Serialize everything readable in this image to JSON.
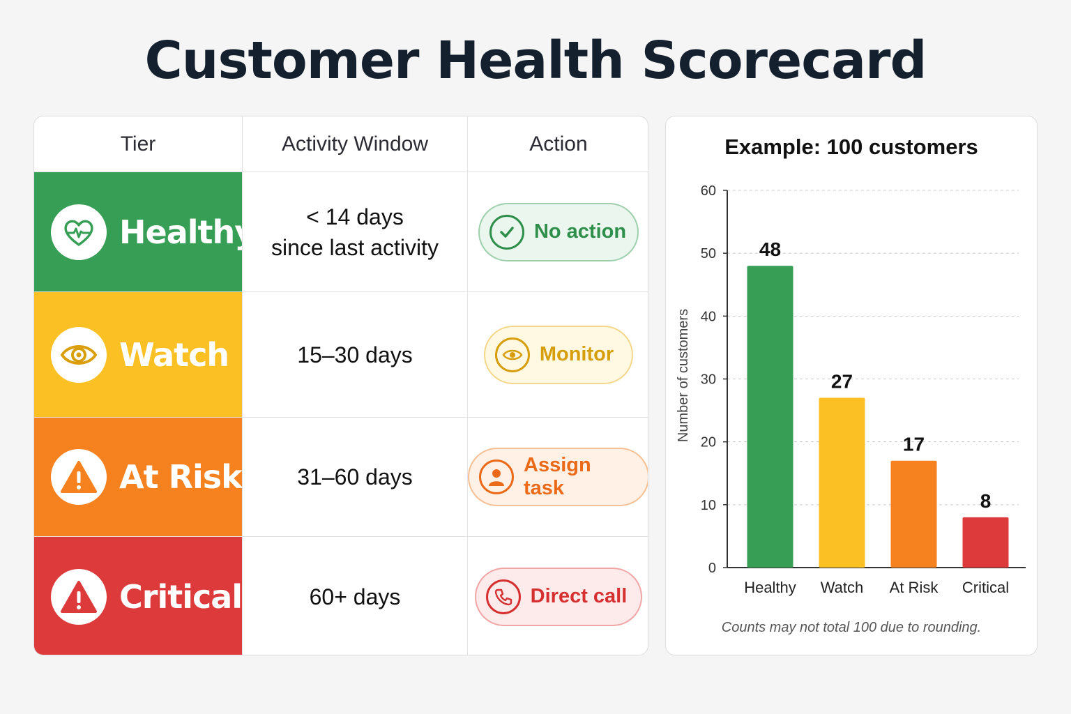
{
  "title": "Customer Health Scorecard",
  "table": {
    "headers": [
      "Tier",
      "Activity Window",
      "Action"
    ],
    "rows": [
      {
        "tier": "Healthy",
        "color": "#369e55",
        "icon": "heart-pulse-icon",
        "window_line1": "< 14 days",
        "window_line2": "since last activity",
        "action": "No action",
        "action_icon": "checkmark-icon",
        "action_color": "#2e8f4a",
        "action_bg": "#eaf6ee",
        "action_border": "#9ed0ae"
      },
      {
        "tier": "Watch",
        "color": "#fbc023",
        "icon": "eye-icon",
        "window_line1": "15–30 days",
        "window_line2": "",
        "action": "Monitor",
        "action_icon": "eye-icon",
        "action_color": "#d79e0c",
        "action_bg": "#fff8e3",
        "action_border": "#f4d78a"
      },
      {
        "tier": "At Risk",
        "color": "#f5811f",
        "icon": "warning-icon",
        "window_line1": "31–60 days",
        "window_line2": "",
        "action": "Assign task",
        "action_icon": "person-icon",
        "action_color": "#ea6a18",
        "action_bg": "#fff1e6",
        "action_border": "#f6bf94"
      },
      {
        "tier": "Critical",
        "color": "#dc3a3b",
        "icon": "warning-icon",
        "window_line1": "60+ days",
        "window_line2": "",
        "action": "Direct call",
        "action_icon": "phone-icon",
        "action_color": "#d5302f",
        "action_bg": "#fdeaea",
        "action_border": "#f1a5a5"
      }
    ]
  },
  "chart_data": {
    "type": "bar",
    "title": "Example: 100 customers",
    "categories": [
      "Healthy",
      "Watch",
      "At Risk",
      "Critical"
    ],
    "values": [
      48,
      27,
      17,
      8
    ],
    "colors": [
      "#369e55",
      "#fbc023",
      "#f5811f",
      "#dc3a3b"
    ],
    "ylabel": "Number of customers",
    "xlabel": "",
    "ylim": [
      0,
      60
    ],
    "yticks": [
      0,
      10,
      20,
      30,
      40,
      50,
      60
    ],
    "grid": true,
    "note": "Counts may not total 100 due to rounding."
  }
}
